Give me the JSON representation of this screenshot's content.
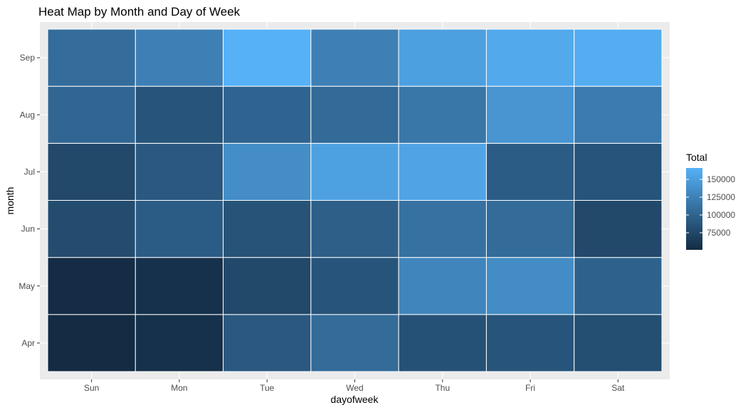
{
  "chart_data": {
    "type": "heatmap",
    "title": "Heat Map by Month and Day of Week",
    "xlabel": "dayofweek",
    "ylabel": "month",
    "x_categories": [
      "Sun",
      "Mon",
      "Tue",
      "Wed",
      "Thu",
      "Fri",
      "Sat"
    ],
    "y_categories": [
      "Apr",
      "May",
      "Jun",
      "Jul",
      "Aug",
      "Sep"
    ],
    "values": [
      [
        51000,
        56000,
        90000,
        106000,
        84000,
        86000,
        81000
      ],
      [
        52000,
        56000,
        76000,
        86000,
        128000,
        134000,
        98000
      ],
      [
        79000,
        93000,
        85000,
        96000,
        111000,
        106000,
        76000
      ],
      [
        76000,
        90000,
        135000,
        152000,
        155000,
        93000,
        86000
      ],
      [
        102000,
        86000,
        100000,
        105000,
        116000,
        142000,
        120000
      ],
      [
        107000,
        124000,
        166000,
        124000,
        151000,
        159000,
        162000
      ]
    ],
    "legend": {
      "title": "Total",
      "placement": "right",
      "ticks": [
        75000,
        100000,
        125000,
        150000
      ],
      "tick_labels": [
        "75000",
        "100000",
        "125000",
        "150000"
      ],
      "range": [
        51000,
        166000
      ]
    },
    "colors": {
      "low": "#132B43",
      "high": "#56B1F7",
      "panel": "#EBEBEB",
      "grid": "#FFFFFF",
      "tile_border": "#FFFFFF"
    },
    "grid": true
  }
}
